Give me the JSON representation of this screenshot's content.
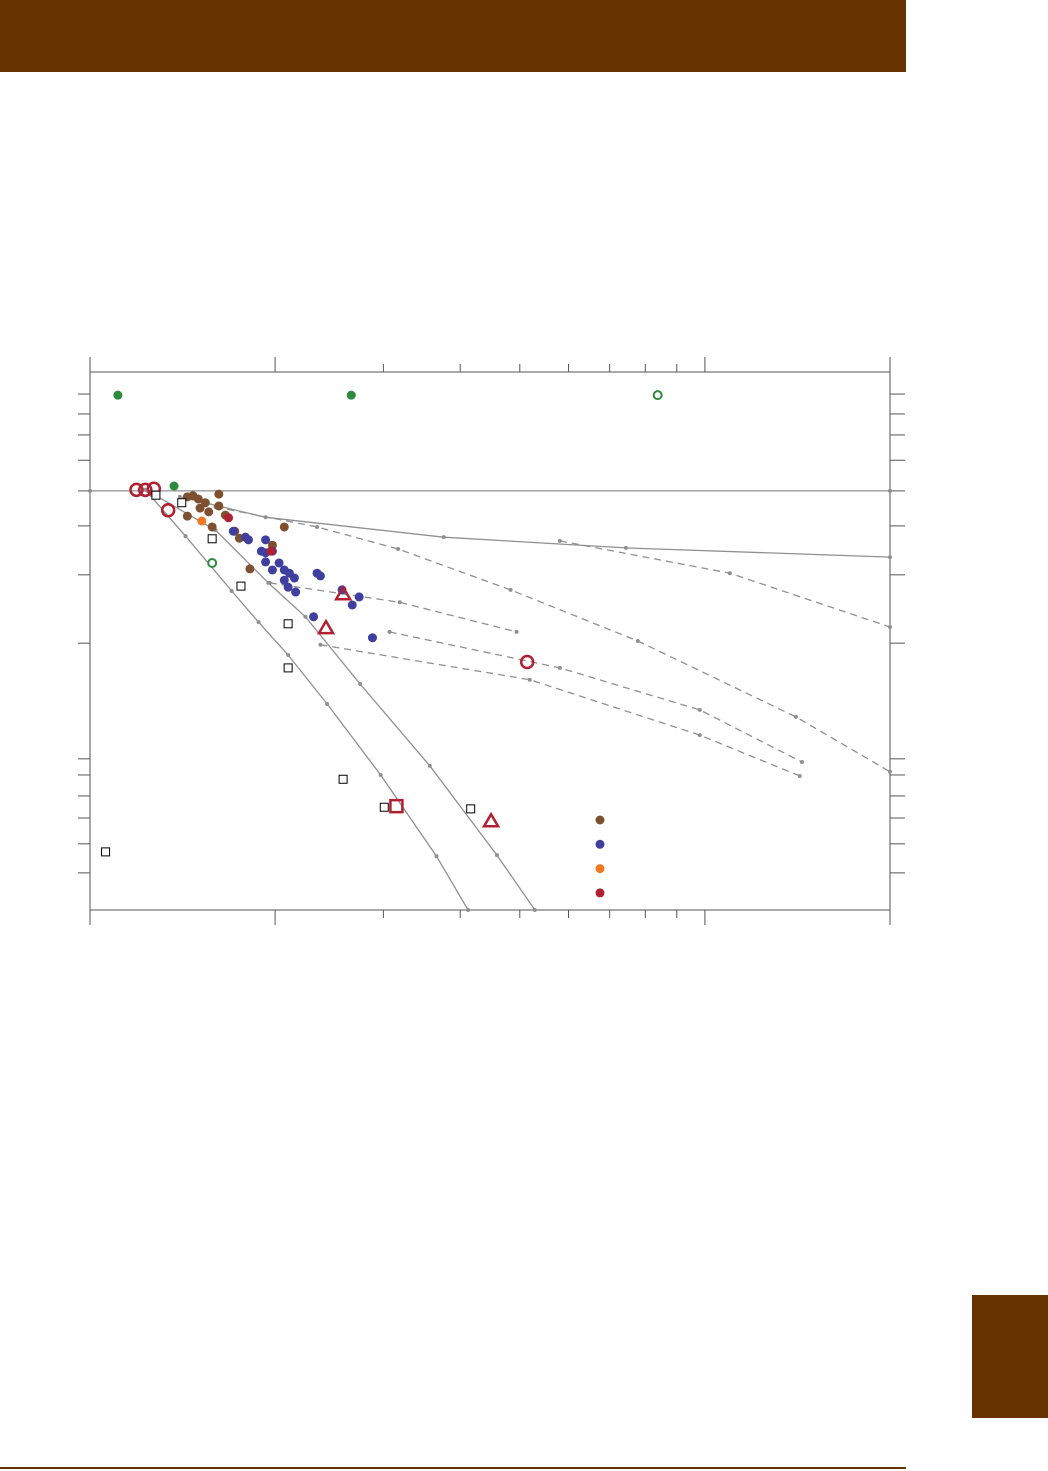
{
  "chart_data": {
    "type": "scatter",
    "xscale": "log",
    "xlim": [
      1,
      20
    ],
    "xticks": [
      1,
      2,
      3,
      4,
      5,
      6,
      7,
      8,
      9,
      10,
      20
    ],
    "ylim": [
      0,
      100
    ],
    "yticks": [
      6.9,
      12.3,
      17.1,
      21.2,
      25.1,
      28.1,
      49.6,
      62.3,
      71.4,
      77.9,
      83.6,
      88.3,
      92.2,
      95.9
    ],
    "series": [
      {
        "color": "#7f5030",
        "marker": "circle",
        "legend": true,
        "x": [
          1.44,
          1.47,
          1.5,
          1.62,
          1.54,
          1.62,
          1.56,
          1.44,
          1.66,
          1.58,
          1.72,
          1.75,
          1.98,
          2.07,
          1.82,
          1.51
        ],
        "y": [
          76.8,
          77.0,
          76.4,
          77.3,
          75.7,
          75.1,
          74.0,
          73.2,
          73.4,
          71.2,
          70.4,
          69.1,
          67.8,
          71.2,
          63.4,
          74.7
        ]
      },
      {
        "color": "#3f3f9f",
        "marker": "circle",
        "legend": true,
        "x": [
          1.71,
          1.79,
          1.81,
          1.93,
          1.9,
          1.98,
          1.93,
          2.03,
          1.98,
          2.07,
          2.11,
          2.07,
          2.15,
          2.1,
          2.16,
          2.34,
          2.37,
          2.57,
          2.74,
          2.67,
          2.31,
          2.88,
          1.93
        ],
        "y": [
          70.4,
          69.3,
          68.8,
          68.8,
          66.7,
          66.7,
          64.7,
          64.5,
          63.2,
          63.2,
          62.6,
          61.3,
          61.7,
          60.0,
          59.1,
          62.6,
          62.1,
          59.5,
          58.2,
          56.7,
          54.5,
          50.6,
          66.4
        ]
      },
      {
        "color": "#f07820",
        "marker": "circle",
        "legend": true,
        "x": [
          1.52
        ],
        "y": [
          72.3
        ]
      },
      {
        "color": "#b02030",
        "marker": "circle",
        "legend": true,
        "x": [
          1.68,
          1.97
        ],
        "y": [
          72.9,
          66.7
        ]
      },
      {
        "color": "#2e8b3e",
        "marker": "circle",
        "x": [
          1.11,
          2.66,
          1.37
        ],
        "y": [
          95.7,
          95.7,
          78.8
        ]
      },
      {
        "color": "#2e8b3e",
        "marker": "open-circle",
        "x": [
          8.38,
          1.58
        ],
        "y": [
          95.7,
          64.5
        ]
      },
      {
        "color": "#b02030",
        "marker": "big-open-circle",
        "x": [
          1.19,
          1.23,
          1.27,
          1.34,
          5.14
        ],
        "y": [
          78.1,
          78.1,
          78.3,
          74.3,
          46.1
        ]
      },
      {
        "color": "#b02030",
        "marker": "triangle",
        "x": [
          2.58,
          2.42,
          4.49
        ],
        "y": [
          58.7,
          52.4,
          16.5
        ]
      },
      {
        "color": "#b02030",
        "marker": "big-square",
        "x": [
          3.15
        ],
        "y": [
          19.3
        ]
      },
      {
        "color": "#000000",
        "marker": "square",
        "x": [
          1.28,
          1.41,
          1.58,
          1.76,
          2.1,
          2.1,
          2.58,
          3.01,
          4.16,
          1.06
        ],
        "y": [
          77.1,
          75.7,
          69.0,
          60.2,
          53.2,
          45.0,
          24.3,
          19.1,
          18.8,
          10.8
        ]
      }
    ],
    "lines": [
      {
        "color": "#909090",
        "dashed": false,
        "x": [
          1,
          20
        ],
        "y": [
          77.9,
          77.9
        ]
      },
      {
        "color": "#909090",
        "dashed": false,
        "x": [
          1.23,
          1.43,
          1.7,
          1.88,
          2.1,
          2.43,
          2.97,
          3.66,
          4.12
        ],
        "y": [
          78.1,
          69.5,
          59.3,
          53.5,
          47.4,
          38.3,
          25.1,
          10.0,
          0
        ]
      },
      {
        "color": "#909090",
        "dashed": false,
        "x": [
          1.25,
          1.6,
          1.95,
          2.24,
          2.75,
          3.57,
          4.59,
          5.29
        ],
        "y": [
          77.7,
          70.6,
          60.8,
          54.5,
          42.0,
          26.8,
          10.2,
          0
        ]
      },
      {
        "color": "#909090",
        "dashed": false,
        "x": [
          1.4,
          1.93,
          3.76,
          7.44,
          20
        ],
        "y": [
          76.8,
          73.0,
          69.3,
          67.3,
          65.6
        ]
      },
      {
        "color": "#909090",
        "dashed": true,
        "x": [
          1.6,
          2.34,
          3.17,
          4.83,
          7.78,
          14.06,
          20
        ],
        "y": [
          74.9,
          71.2,
          67.1,
          59.5,
          50.0,
          35.9,
          25.7
        ]
      },
      {
        "color": "#909090",
        "dashed": true,
        "x": [
          5.81,
          10.98,
          20
        ],
        "y": [
          68.6,
          62.6,
          52.6
        ]
      },
      {
        "color": "#909090",
        "dashed": true,
        "x": [
          1.96,
          3.19,
          4.94
        ],
        "y": [
          60.8,
          57.2,
          51.7
        ]
      },
      {
        "color": "#909090",
        "dashed": true,
        "x": [
          3.07,
          5.81,
          9.81,
          14.38
        ],
        "y": [
          51.7,
          45.0,
          37.2,
          27.5
        ]
      },
      {
        "color": "#909090",
        "dashed": true,
        "x": [
          2.37,
          5.19,
          9.81,
          14.27
        ],
        "y": [
          49.3,
          42.8,
          32.5,
          24.9
        ]
      }
    ]
  }
}
